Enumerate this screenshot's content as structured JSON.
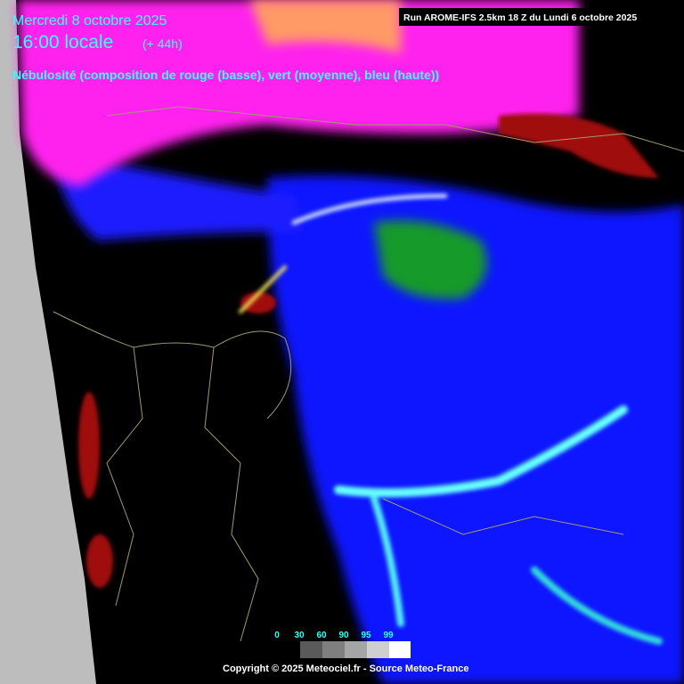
{
  "header": {
    "date": "Mercredi 8 octobre 2025",
    "time": "16:00 locale",
    "lead": "(+ 44h)",
    "description": "Nébulosité (composition de rouge (basse), vert (moyenne), bleu (haute))"
  },
  "run_info": "Run AROME-IFS 2.5km 18 Z du Lundi 6 octobre 2025",
  "legend": {
    "labels": [
      0,
      30,
      60,
      90,
      95,
      99
    ]
  },
  "copyright": "Copyright © 2025 Meteociel.fr - Source Meteo-France"
}
